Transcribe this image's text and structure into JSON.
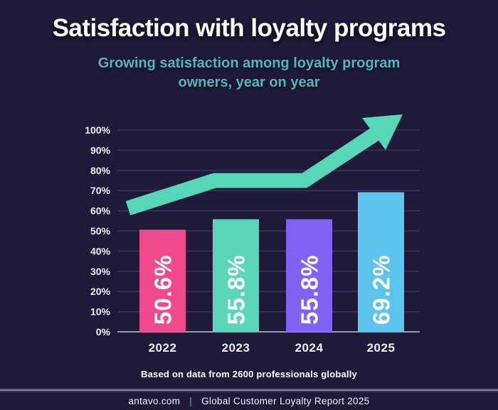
{
  "header": {
    "title": "Satisfaction with loyalty programs",
    "subtitle_line1": "Growing satisfaction among loyalty program",
    "subtitle_line2": "owners, year on year"
  },
  "chart_data": {
    "type": "bar",
    "title": "Satisfaction with loyalty programs",
    "subtitle": "Growing satisfaction among loyalty program owners, year on year",
    "categories": [
      "2022",
      "2023",
      "2024",
      "2025"
    ],
    "values": [
      50.6,
      55.8,
      55.8,
      69.2
    ],
    "value_labels": [
      "50.6%",
      "55.8%",
      "55.8%",
      "69.2%"
    ],
    "bar_colors": [
      "#ee4a8c",
      "#5bd5b8",
      "#7f63f4",
      "#5bc3ec"
    ],
    "ylim": [
      0,
      100
    ],
    "yticks": [
      0,
      10,
      20,
      30,
      40,
      50,
      60,
      70,
      80,
      90,
      100
    ],
    "ytick_labels": [
      "0%",
      "10%",
      "20%",
      "30%",
      "40%",
      "50%",
      "60%",
      "70%",
      "80%",
      "90%",
      "100%"
    ],
    "grid": true,
    "legend": "none",
    "annotations": [
      {
        "name": "trend-arrow",
        "description": "thick upward trend arrow over the bars",
        "color": "#57d6b8"
      }
    ]
  },
  "footer": {
    "note": "Based on data from 2600 professionals globally",
    "source_left": "antavo.com",
    "separator": "|",
    "source_right": "Global Customer Loyalty Report 2025"
  },
  "colors": {
    "background": "#1f1a39",
    "title_text": "#ffffff",
    "subtitle_text": "#55b5bc",
    "gridline": "#3a3463",
    "axis_baseline": "#9b98ac",
    "trend_arrow": "#57d6b8",
    "separator_accent": "#4db6ad"
  }
}
